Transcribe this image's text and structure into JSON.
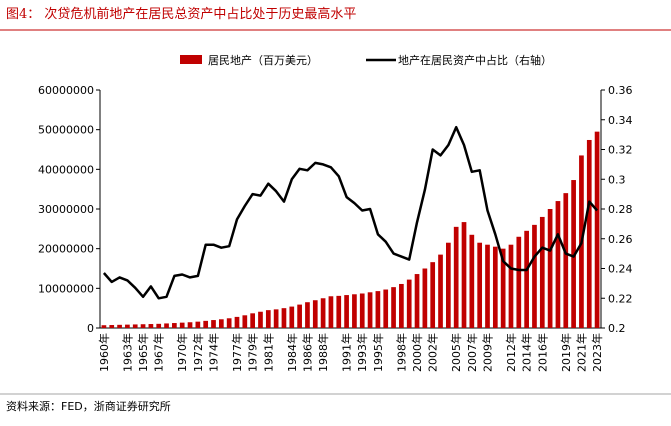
{
  "chart_data": {
    "type": "combo",
    "title": "图4： 次贷危机前地产在居民总资产中占比处于历史最高水平",
    "source": "资料来源：FED，浙商证券研究所",
    "categories": [
      "1960年",
      null,
      null,
      "1963年",
      null,
      "1965年",
      null,
      "1967年",
      null,
      null,
      "1970年",
      null,
      "1972年",
      null,
      "1974年",
      null,
      null,
      "1977年",
      null,
      "1979年",
      null,
      "1981年",
      null,
      null,
      "1984年",
      null,
      "1986年",
      null,
      "1988年",
      null,
      null,
      "1991年",
      null,
      "1993年",
      null,
      "1995年",
      null,
      null,
      "1998年",
      null,
      "2000年",
      null,
      "2002年",
      null,
      null,
      "2005年",
      null,
      "2007年",
      null,
      "2009年",
      null,
      null,
      "2012年",
      null,
      "2014年",
      null,
      "2016年",
      null,
      null,
      "2019年",
      null,
      "2021年",
      null,
      "2023年"
    ],
    "series": [
      {
        "name": "居民地产（百万美元）",
        "type": "bar",
        "color": "#c00000",
        "values": [
          700000,
          750000,
          800000,
          850000,
          900000,
          950000,
          1000000,
          1050000,
          1150000,
          1250000,
          1350000,
          1450000,
          1600000,
          1800000,
          2000000,
          2200000,
          2450000,
          2800000,
          3200000,
          3700000,
          4100000,
          4500000,
          4700000,
          5000000,
          5400000,
          5900000,
          6500000,
          7000000,
          7500000,
          8000000,
          8100000,
          8300000,
          8500000,
          8700000,
          9000000,
          9300000,
          9700000,
          10300000,
          11100000,
          12200000,
          13600000,
          15000000,
          16600000,
          18500000,
          21500000,
          25500000,
          26700000,
          23500000,
          21500000,
          21000000,
          20500000,
          20000000,
          21000000,
          23000000,
          24500000,
          26000000,
          28000000,
          30000000,
          32000000,
          34000000,
          37300000,
          43500000,
          47400000,
          49500000
        ]
      },
      {
        "name": "地产在居民资产中占比（右轴）",
        "type": "line",
        "axis": "y2",
        "color": "#000000",
        "values": [
          0.237,
          0.231,
          0.234,
          0.232,
          0.227,
          0.221,
          0.228,
          0.22,
          0.221,
          0.235,
          0.236,
          0.234,
          0.235,
          0.256,
          0.256,
          0.254,
          0.255,
          0.273,
          0.282,
          0.29,
          0.289,
          0.297,
          0.292,
          0.285,
          0.3,
          0.307,
          0.306,
          0.311,
          0.31,
          0.308,
          0.302,
          0.288,
          0.284,
          0.279,
          0.28,
          0.263,
          0.258,
          0.25,
          0.248,
          0.246,
          0.271,
          0.293,
          0.32,
          0.316,
          0.323,
          0.335,
          0.323,
          0.305,
          0.306,
          0.279,
          0.263,
          0.245,
          0.24,
          0.239,
          0.239,
          0.248,
          0.254,
          0.252,
          0.263,
          0.25,
          0.248,
          0.257,
          0.285,
          0.279
        ]
      }
    ],
    "ylim": [
      0,
      60000000
    ],
    "yticks": [
      0,
      10000000,
      20000000,
      30000000,
      40000000,
      50000000,
      60000000
    ],
    "y2lim": [
      0.2,
      0.36
    ],
    "y2ticks": [
      0.2,
      0.22,
      0.24,
      0.26,
      0.28,
      0.3,
      0.32,
      0.34,
      0.36
    ]
  }
}
